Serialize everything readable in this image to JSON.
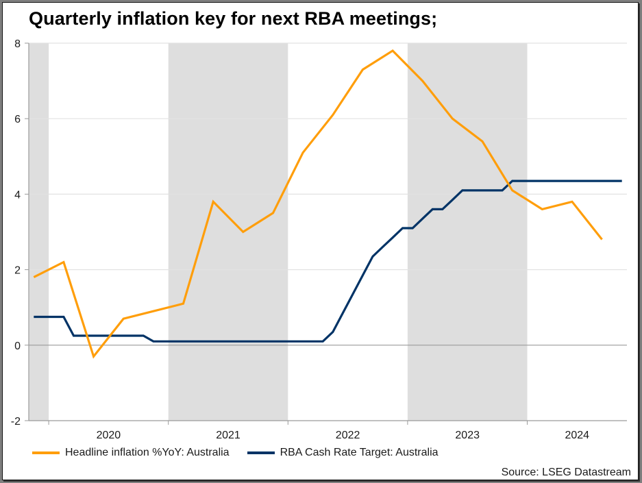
{
  "chart_data": {
    "type": "line",
    "title": "Quarterly inflation key for next RBA meetings;",
    "xlabel": "",
    "ylabel": "",
    "ylim": [
      -2,
      8
    ],
    "yticks": [
      8,
      6,
      4,
      2,
      0,
      -2
    ],
    "ytick_labels": [
      "8",
      "6",
      "4",
      "2",
      "0",
      "-2"
    ],
    "xlim": [
      "2019-11",
      "2024-11"
    ],
    "xtick_labels": [
      "2020",
      "2021",
      "2022",
      "2023",
      "2024"
    ],
    "grid": true,
    "legend_position": "bottom-left",
    "shaded_years": [
      2019,
      2021,
      2023
    ],
    "colors": {
      "inflation": "#FF9E0B",
      "cash_rate": "#003366",
      "shade": "#DEDEDE",
      "grid": "#E2E2E2",
      "axis": "#9A9A9A"
    },
    "series": [
      {
        "name": "Headline inflation %YoY: Australia",
        "frequency": "quarterly",
        "x": [
          "2019-Q4",
          "2020-Q1",
          "2020-Q2",
          "2020-Q3",
          "2020-Q4",
          "2021-Q1",
          "2021-Q2",
          "2021-Q3",
          "2021-Q4",
          "2022-Q1",
          "2022-Q2",
          "2022-Q3",
          "2022-Q4",
          "2023-Q1",
          "2023-Q2",
          "2023-Q3",
          "2023-Q4",
          "2024-Q1",
          "2024-Q2",
          "2024-Q3"
        ],
        "values": [
          1.8,
          2.2,
          -0.3,
          0.7,
          0.9,
          1.1,
          3.8,
          3.0,
          3.5,
          5.1,
          6.1,
          7.3,
          7.8,
          7.0,
          6.0,
          5.4,
          4.1,
          3.6,
          3.8,
          2.8
        ]
      },
      {
        "name": "RBA Cash Rate Target: Australia",
        "frequency": "monthly",
        "x": [
          "2019-11",
          "2019-12",
          "2020-01",
          "2020-02",
          "2020-03",
          "2020-04",
          "2020-05",
          "2020-06",
          "2020-07",
          "2020-08",
          "2020-09",
          "2020-10",
          "2020-11",
          "2020-12",
          "2021-01",
          "2021-02",
          "2021-03",
          "2021-04",
          "2021-05",
          "2021-06",
          "2021-07",
          "2021-08",
          "2021-09",
          "2021-10",
          "2021-11",
          "2021-12",
          "2022-01",
          "2022-02",
          "2022-03",
          "2022-04",
          "2022-05",
          "2022-06",
          "2022-07",
          "2022-08",
          "2022-09",
          "2022-10",
          "2022-11",
          "2022-12",
          "2023-01",
          "2023-02",
          "2023-03",
          "2023-04",
          "2023-05",
          "2023-06",
          "2023-07",
          "2023-08",
          "2023-09",
          "2023-10",
          "2023-11",
          "2023-12",
          "2024-01",
          "2024-02",
          "2024-03",
          "2024-04",
          "2024-05",
          "2024-06",
          "2024-07",
          "2024-08",
          "2024-09",
          "2024-10"
        ],
        "values": [
          0.75,
          0.75,
          0.75,
          0.75,
          0.25,
          0.25,
          0.25,
          0.25,
          0.25,
          0.25,
          0.25,
          0.25,
          0.1,
          0.1,
          0.1,
          0.1,
          0.1,
          0.1,
          0.1,
          0.1,
          0.1,
          0.1,
          0.1,
          0.1,
          0.1,
          0.1,
          0.1,
          0.1,
          0.1,
          0.1,
          0.35,
          0.85,
          1.35,
          1.85,
          2.35,
          2.6,
          2.85,
          3.1,
          3.1,
          3.35,
          3.6,
          3.6,
          3.85,
          4.1,
          4.1,
          4.1,
          4.1,
          4.1,
          4.35,
          4.35,
          4.35,
          4.35,
          4.35,
          4.35,
          4.35,
          4.35,
          4.35,
          4.35,
          4.35,
          4.35
        ]
      }
    ]
  },
  "legend": {
    "items": [
      {
        "label": "Headline inflation %YoY: Australia"
      },
      {
        "label": "RBA Cash Rate Target: Australia"
      }
    ]
  },
  "source": "Source: LSEG Datastream"
}
